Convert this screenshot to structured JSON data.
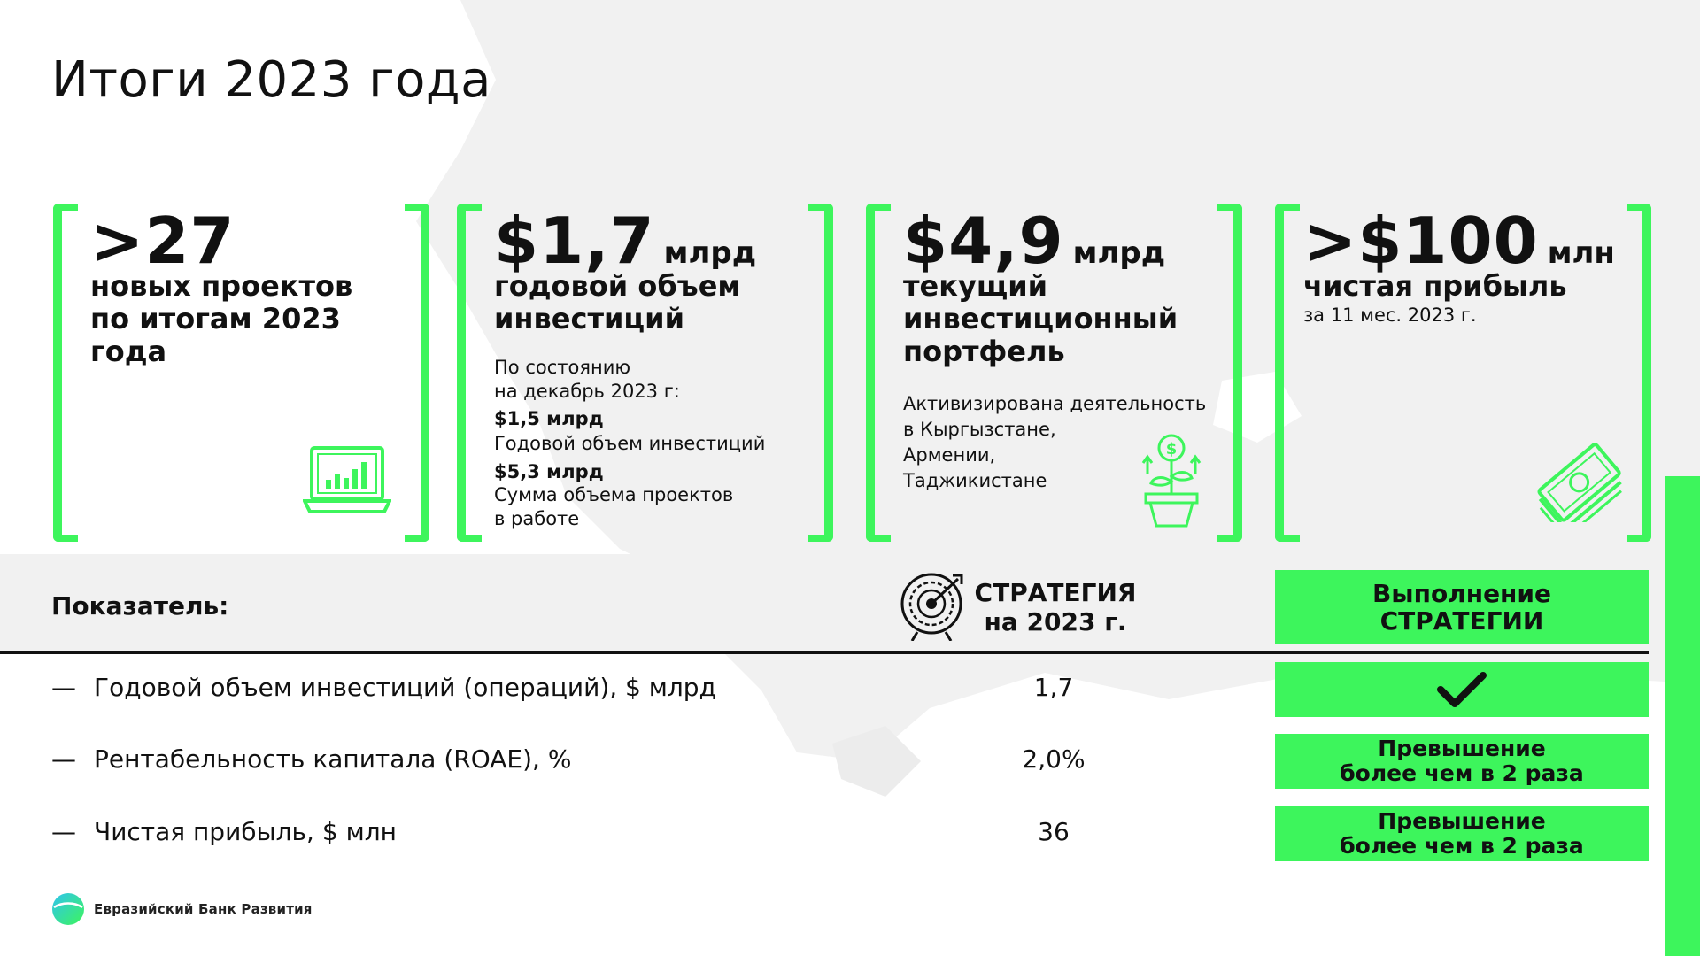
{
  "title": "Итоги 2023 года",
  "colors": {
    "accent": "#3df55c",
    "text": "#111111",
    "panel": "#f1f1f1"
  },
  "cards": [
    {
      "value": ">27",
      "unit": "",
      "label": "новых проектов\nпо итогам 2023\nгода",
      "icon": "laptop-chart-icon"
    },
    {
      "value": "$1,7",
      "unit": "млрд",
      "label": "годовой объем\nинвестиций",
      "note": "По состоянию\nна декабрь 2023 г:",
      "items": [
        {
          "value": "$1,5 млрд",
          "text": "Годовой объем инвестиций"
        },
        {
          "value": "$5,3 млрд",
          "text": "Сумма объема проектов\nв работе"
        }
      ]
    },
    {
      "value": "$4,9",
      "unit": "млрд",
      "label": "текущий\nинвестиционный\nпортфель",
      "note": "Активизирована деятельность\nв Кыргызстане,\nАрмении,\nТаджикистане",
      "icon": "money-plant-icon"
    },
    {
      "value": ">$100",
      "unit": "млн",
      "label": "чистая прибыль",
      "note": "за 11 мес. 2023 г.",
      "icon": "banknotes-icon"
    }
  ],
  "table": {
    "indicator_header": "Показатель:",
    "strategy_header": "СТРАТЕГИЯ\nна 2023 г.",
    "execution_header": "Выполнение\nСТРАТЕГИИ",
    "rows": [
      {
        "dash": "—",
        "label": "Годовой объем инвестиций (операций), $ млрд",
        "value": "1,7",
        "status": "",
        "status_icon": "checkmark-icon"
      },
      {
        "dash": "—",
        "label": "Рентабельность капитала (ROAE), %",
        "value": "2,0%",
        "status": "Превышение\nболее чем в 2 раза"
      },
      {
        "dash": "—",
        "label": "Чистая прибыль, $ млн",
        "value": "36",
        "status": "Превышение\nболее чем в 2 раза"
      }
    ]
  },
  "logo": {
    "text": "Евразийский Банк Развития"
  }
}
